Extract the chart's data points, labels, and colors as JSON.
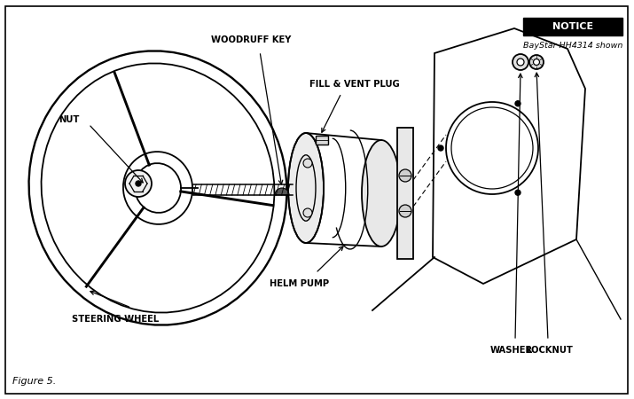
{
  "figure_label": "Figure 5.",
  "notice_text": "NOTICE",
  "notice_sub": "BayStar HH4314 shown",
  "bg_color": "#ffffff",
  "labels": {
    "nut": "NUT",
    "woodruff_key": "WOODRUFF KEY",
    "fill_vent": "FILL & VENT PLUG",
    "helm_pump": "HELM PUMP",
    "steering_wheel": "STEERING WHEEL",
    "washer": "WASHER",
    "locknut": "LOCKNUT"
  }
}
